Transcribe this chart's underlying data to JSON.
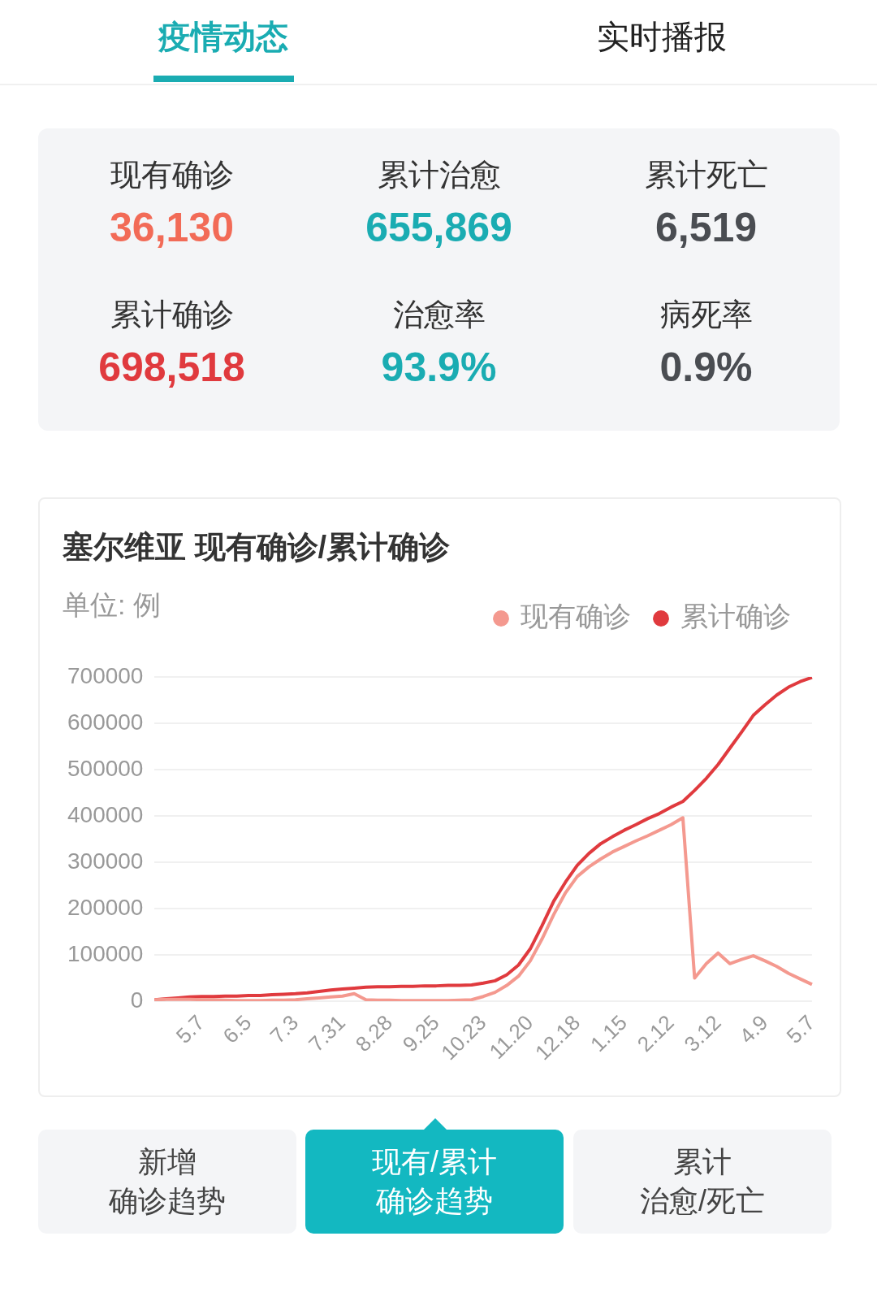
{
  "chart_data": {
    "type": "line",
    "title": "塞尔维亚 现有确诊/累计确诊",
    "subtitle": "单位: 例",
    "categories": [
      null,
      null,
      null,
      null,
      "5.7",
      null,
      null,
      null,
      "6.5",
      null,
      null,
      null,
      "7.3",
      null,
      null,
      null,
      "7.31",
      null,
      null,
      null,
      "8.28",
      null,
      null,
      null,
      "9.25",
      null,
      null,
      null,
      "10.23",
      null,
      null,
      null,
      "11.20",
      null,
      null,
      null,
      "12.18",
      null,
      null,
      null,
      "1.15",
      null,
      null,
      null,
      "2.12",
      null,
      null,
      null,
      "3.12",
      null,
      null,
      null,
      "4.9",
      null,
      null,
      null,
      "5.7"
    ],
    "series": [
      {
        "name": "现有确诊",
        "color": "#f4998f",
        "values": [
          3000,
          4000,
          4000,
          4000,
          3000,
          3000,
          2000,
          1000,
          1000,
          1000,
          2000,
          2000,
          3000,
          5000,
          7000,
          9000,
          11000,
          16000,
          3000,
          2000,
          2000,
          1000,
          1000,
          1000,
          1000,
          1000,
          2000,
          3000,
          10000,
          19000,
          34000,
          54000,
          87000,
          134000,
          187000,
          234000,
          269000,
          290000,
          307000,
          322000,
          334000,
          346000,
          357000,
          369000,
          381000,
          396000,
          50000,
          81000,
          104000,
          81000,
          90000,
          98000,
          87000,
          75000,
          60000,
          48000,
          36000
        ]
      },
      {
        "name": "累计确诊",
        "color": "#e03a3e",
        "values": [
          3000,
          5000,
          7000,
          9000,
          10000,
          10000,
          11000,
          11000,
          12000,
          12000,
          14000,
          15000,
          16000,
          18000,
          21000,
          24000,
          26000,
          28000,
          30000,
          31000,
          31000,
          32000,
          32000,
          33000,
          33000,
          34000,
          34000,
          35000,
          39000,
          44000,
          57000,
          78000,
          113000,
          163000,
          216000,
          257000,
          293000,
          319000,
          340000,
          355000,
          369000,
          381000,
          394000,
          405000,
          419000,
          431000,
          455000,
          481000,
          511000,
          546000,
          581000,
          617000,
          640000,
          661000,
          678000,
          690000,
          699000
        ]
      }
    ],
    "ylim": [
      0,
      700000
    ],
    "yticks": [
      0,
      100000,
      200000,
      300000,
      400000,
      500000,
      600000,
      700000
    ],
    "grid": "y",
    "legend": "top right",
    "marker": "none",
    "line_style": "solid",
    "annotations": [
      "疫情动态",
      "实时播报",
      "现有确诊",
      "36,130",
      "累计治愈",
      "655,869",
      "累计死亡",
      "6,519",
      "累计确诊",
      "698,518",
      "治愈率",
      "93.9%",
      "病死率",
      "0.9%",
      "新增",
      "确诊趋势",
      "现有/累计",
      "确诊趋势",
      "累计",
      "治愈/死亡"
    ]
  }
}
